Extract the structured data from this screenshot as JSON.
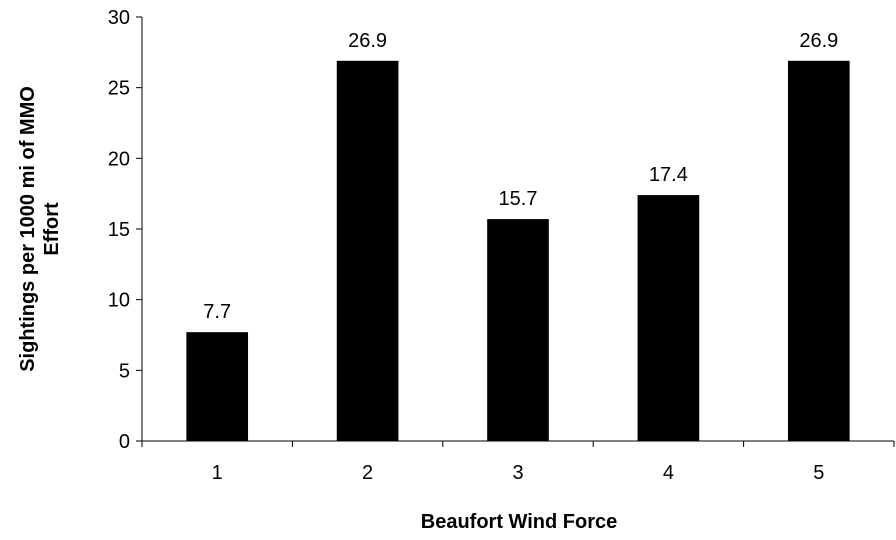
{
  "chart_data": {
    "type": "bar",
    "categories": [
      "1",
      "2",
      "3",
      "4",
      "5"
    ],
    "values": [
      7.7,
      26.9,
      15.7,
      17.4,
      26.9
    ],
    "data_labels": [
      "7.7",
      "26.9",
      "15.7",
      "17.4",
      "26.9"
    ],
    "title": "",
    "xlabel": "Beaufort Wind Force",
    "ylabel_lines": [
      "Sightings per 1000 mi of MMO",
      "Effort"
    ],
    "ylim": [
      0,
      30
    ],
    "yticks": [
      0,
      5,
      10,
      15,
      20,
      25,
      30
    ],
    "ytick_labels": [
      "0",
      "5",
      "10",
      "15",
      "20",
      "25",
      "30"
    ],
    "grid": false,
    "legend": "none",
    "colors": {
      "bar": "#000000",
      "axis": "#000000"
    }
  }
}
